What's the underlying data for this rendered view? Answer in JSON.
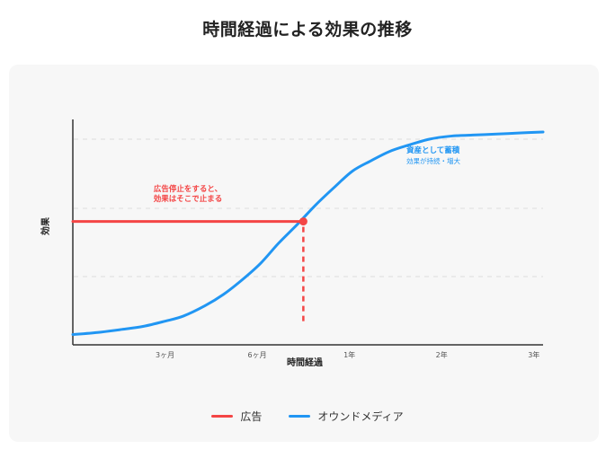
{
  "title": "時間経過による効果の推移",
  "chart_data": {
    "type": "line",
    "title": "時間経過による効果の推移",
    "xlabel": "時間経過",
    "ylabel": "効果",
    "x_ticks": [
      {
        "label": "3ヶ月",
        "value": 3
      },
      {
        "label": "6ヶ月",
        "value": 6
      },
      {
        "label": "1年",
        "value": 9
      },
      {
        "label": "2年",
        "value": 12
      },
      {
        "label": "3年",
        "value": 15
      }
    ],
    "xlim": [
      0,
      15.3
    ],
    "ylim": [
      0,
      100
    ],
    "grid": "horizontal dashed",
    "legend_position": "bottom-center",
    "series": [
      {
        "name": "広告",
        "color": "#f44545",
        "x": [
          0,
          7.5
        ],
        "y": [
          60,
          60
        ],
        "dashed_drop_x": 7.5
      },
      {
        "name": "オウンドメディア",
        "color": "#2196f3",
        "x": [
          0,
          0.8,
          1.6,
          2.3,
          3.0,
          3.6,
          4.3,
          4.9,
          5.5,
          6.1,
          6.7,
          7.3,
          7.9,
          8.5,
          9.1,
          9.7,
          10.3,
          10.9,
          11.6,
          12.3,
          13.0,
          13.8,
          14.5,
          15.3
        ],
        "y": [
          5,
          6,
          7.5,
          9,
          11.5,
          14,
          19,
          24.5,
          31.5,
          39.5,
          49.5,
          58.5,
          68,
          76.5,
          84.5,
          89.5,
          94,
          97,
          100,
          101.5,
          102,
          102.5,
          103,
          103.5
        ]
      }
    ],
    "annotations": {
      "ad": [
        "広告停止をすると、",
        "効果はそこで止まる"
      ],
      "owned": {
        "title": "資産として蓄積",
        "sub": "効果が持続・増大"
      }
    }
  }
}
